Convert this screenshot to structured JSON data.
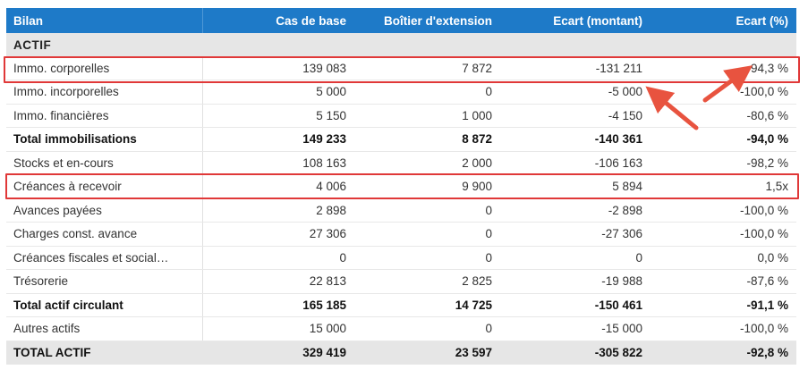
{
  "headers": [
    "Bilan",
    "Cas de base",
    "Boîtier d'extension",
    "Ecart (montant)",
    "Ecart (%)"
  ],
  "section": "ACTIF",
  "rows": [
    {
      "label": "Immo. corporelles",
      "base": "139 083",
      "ext": "7 872",
      "diff": "-131 211",
      "pct": "-94,3 %",
      "type": "normal"
    },
    {
      "label": "Immo. incorporelles",
      "base": "5 000",
      "ext": "0",
      "diff": "-5 000",
      "pct": "-100,0 %",
      "type": "normal"
    },
    {
      "label": "Immo. financières",
      "base": "5 150",
      "ext": "1 000",
      "diff": "-4 150",
      "pct": "-80,6 %",
      "type": "normal"
    },
    {
      "label": "Total immobilisations",
      "base": "149 233",
      "ext": "8 872",
      "diff": "-140 361",
      "pct": "-94,0 %",
      "type": "total"
    },
    {
      "label": "Stocks et en-cours",
      "base": "108 163",
      "ext": "2 000",
      "diff": "-106 163",
      "pct": "-98,2 %",
      "type": "normal"
    },
    {
      "label": "Créances à recevoir",
      "base": "4 006",
      "ext": "9 900",
      "diff": "5 894",
      "pct": "1,5x",
      "type": "normal"
    },
    {
      "label": "Avances payées",
      "base": "2 898",
      "ext": "0",
      "diff": "-2 898",
      "pct": "-100,0 %",
      "type": "normal"
    },
    {
      "label": "Charges const. avance",
      "base": "27 306",
      "ext": "0",
      "diff": "-27 306",
      "pct": "-100,0 %",
      "type": "normal"
    },
    {
      "label": "Créances fiscales et social…",
      "base": "0",
      "ext": "0",
      "diff": "0",
      "pct": "0,0 %",
      "type": "normal"
    },
    {
      "label": "Trésorerie",
      "base": "22 813",
      "ext": "2 825",
      "diff": "-19 988",
      "pct": "-87,6 %",
      "type": "normal"
    },
    {
      "label": "Total actif circulant",
      "base": "165 185",
      "ext": "14 725",
      "diff": "-150 461",
      "pct": "-91,1 %",
      "type": "total"
    },
    {
      "label": "Autres actifs",
      "base": "15 000",
      "ext": "0",
      "diff": "-15 000",
      "pct": "-100,0 %",
      "type": "normal"
    },
    {
      "label": "TOTAL ACTIF",
      "base": "329 419",
      "ext": "23 597",
      "diff": "-305 822",
      "pct": "-92,8 %",
      "type": "grand"
    }
  ],
  "colors": {
    "header_bg": "#1e7ac8",
    "highlight": "#e03838",
    "section_bg": "#e6e6e6"
  }
}
